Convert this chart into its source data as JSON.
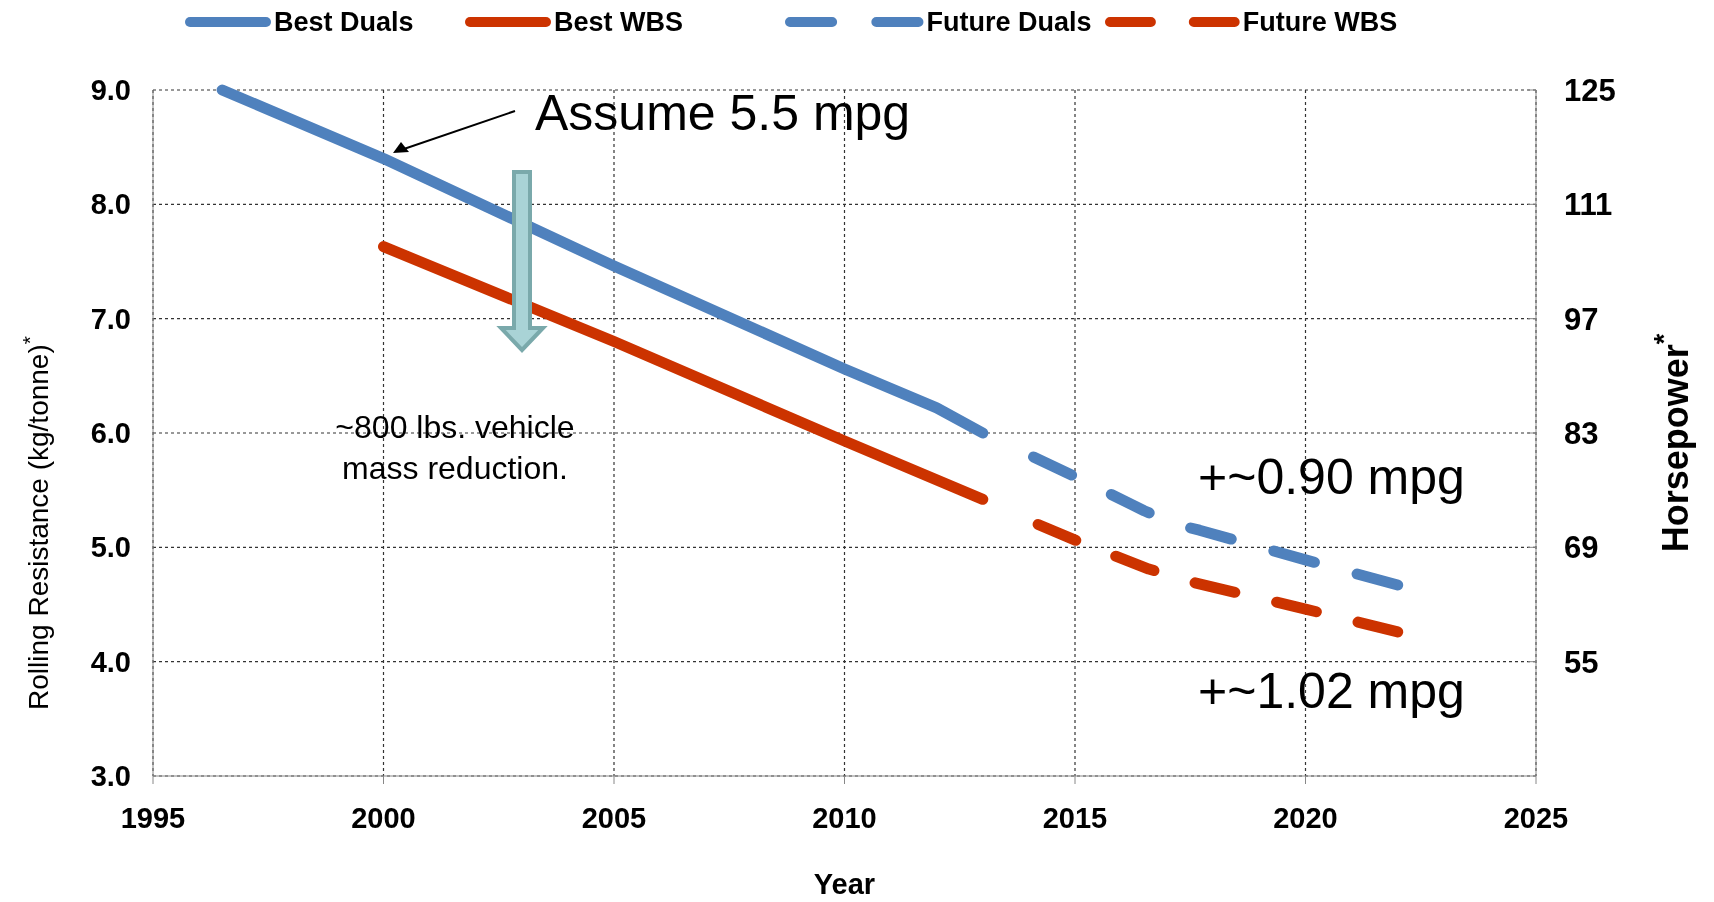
{
  "chart_data": {
    "type": "line",
    "xlabel": "Year",
    "ylabel": "Rolling Resistance (kg/tonne)$^{*}$",
    "y2label": "Horsepower$^{*}$",
    "xlim": [
      1995,
      2025
    ],
    "xticks": [
      1995,
      2000,
      2005,
      2010,
      2015,
      2020,
      2025
    ],
    "ylim": [
      3.0,
      9.0
    ],
    "yticks": [
      {
        "value": 3,
        "label": "3.0"
      },
      {
        "value": 4,
        "label": "4.0"
      },
      {
        "value": 5,
        "label": "5.0"
      },
      {
        "value": 6,
        "label": "6.0"
      },
      {
        "value": 7,
        "label": "7.0"
      },
      {
        "value": 8,
        "label": "8.0"
      },
      {
        "value": 9,
        "label": "9.0"
      }
    ],
    "y2lim": [
      41,
      125
    ],
    "y2ticks": [
      55,
      69,
      83,
      97,
      111,
      125
    ],
    "grid": true,
    "legend": "top",
    "marker": "none",
    "series": [
      {
        "name": "Best Duals",
        "color": "#4f81bd",
        "line_style": "solid",
        "x": [
          1996.5,
          2000,
          2005,
          2010,
          2012,
          2013
        ],
        "values": [
          9.0,
          8.4,
          7.46,
          6.56,
          6.22,
          6.0
        ]
      },
      {
        "name": "Best WBS",
        "color": "#cc3300",
        "line_style": "solid",
        "x": [
          2000,
          2005,
          2010,
          2013
        ],
        "values": [
          7.63,
          6.8,
          5.93,
          5.42
        ]
      },
      {
        "name": "Future Duals",
        "color": "#4f81bd",
        "line_style": "dashed",
        "x": [
          2014.1,
          2015.2,
          2016.5,
          2017.2,
          2017.7,
          2020,
          2022
        ],
        "values": [
          5.79,
          5.58,
          5.32,
          5.2,
          5.15,
          4.89,
          4.67
        ]
      },
      {
        "name": "Future WBS",
        "color": "#cc3300",
        "line_style": "dashed",
        "x": [
          2014.2,
          2015.2,
          2016.6,
          2017.6,
          2020,
          2022
        ],
        "values": [
          5.2,
          5.03,
          4.81,
          4.69,
          4.46,
          4.26
        ]
      }
    ],
    "annotations": [
      "Assume 5.5 mpg",
      "~800 lbs. vehicle\nmass reduction.",
      "+~0.90 mpg",
      "+~1.02 mpg"
    ]
  }
}
